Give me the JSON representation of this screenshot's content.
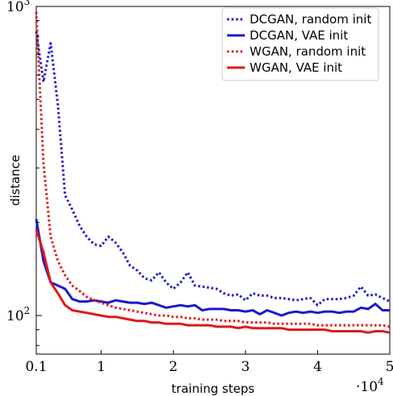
{
  "chart_data": {
    "type": "line",
    "title": "",
    "xlabel": "training steps",
    "ylabel": "distance",
    "x_scale_note": "·10^4",
    "x_multiplier_base": "·10",
    "x_multiplier_exp": "4",
    "xlim": [
      0.1,
      5
    ],
    "ylim": [
      75,
      1000
    ],
    "y_scale": "log",
    "grid": false,
    "legend_position": "top-right",
    "x_ticks": [
      {
        "value": 0.1,
        "label": "0.1"
      },
      {
        "value": 1,
        "label": "1"
      },
      {
        "value": 2,
        "label": "2"
      },
      {
        "value": 3,
        "label": "3"
      },
      {
        "value": 4,
        "label": "4"
      },
      {
        "value": 5,
        "label": "5"
      }
    ],
    "y_ticks": [
      {
        "value": 100,
        "base": "10",
        "exp": "2"
      },
      {
        "value": 1000,
        "base": "10",
        "exp": "3"
      }
    ],
    "series": [
      {
        "name": "DCGAN, random init",
        "color": "#1a1acc",
        "style": "dotted",
        "x": [
          0.1,
          0.2,
          0.3,
          0.4,
          0.5,
          0.6,
          0.7,
          0.8,
          0.9,
          1.0,
          1.1,
          1.2,
          1.3,
          1.4,
          1.5,
          1.6,
          1.7,
          1.8,
          1.9,
          2.0,
          2.1,
          2.2,
          2.3,
          2.4,
          2.5,
          2.6,
          2.7,
          2.8,
          2.9,
          3.0,
          3.1,
          3.2,
          3.3,
          3.4,
          3.5,
          3.6,
          3.7,
          3.8,
          3.9,
          4.0,
          4.1,
          4.2,
          4.3,
          4.4,
          4.5,
          4.6,
          4.7,
          4.8,
          4.9,
          5.0
        ],
        "y": [
          830,
          570,
          760,
          480,
          245,
          220,
          195,
          180,
          170,
          168,
          180,
          172,
          160,
          145,
          140,
          132,
          130,
          138,
          128,
          122,
          128,
          138,
          125,
          124,
          123,
          122,
          118,
          116,
          117,
          112,
          118,
          116,
          116,
          114,
          114,
          113,
          112,
          113,
          114,
          108,
          113,
          113,
          113,
          114,
          116,
          124,
          116,
          117,
          114,
          111
        ]
      },
      {
        "name": "DCGAN, VAE init",
        "color": "#1a1acc",
        "style": "solid",
        "x": [
          0.1,
          0.2,
          0.3,
          0.4,
          0.5,
          0.6,
          0.7,
          0.8,
          0.9,
          1.0,
          1.1,
          1.2,
          1.3,
          1.4,
          1.5,
          1.6,
          1.7,
          1.8,
          1.9,
          2.0,
          2.1,
          2.2,
          2.3,
          2.4,
          2.5,
          2.6,
          2.7,
          2.8,
          2.9,
          3.0,
          3.1,
          3.2,
          3.3,
          3.4,
          3.5,
          3.6,
          3.7,
          3.8,
          3.9,
          4.0,
          4.1,
          4.2,
          4.3,
          4.4,
          4.5,
          4.6,
          4.7,
          4.8,
          4.9,
          5.0
        ],
        "y": [
          205,
          150,
          128,
          125,
          122,
          113,
          111,
          111,
          112,
          111,
          110,
          112,
          111,
          110,
          110,
          109,
          110,
          108,
          106,
          107,
          108,
          107,
          108,
          104,
          105,
          105,
          105,
          104,
          104,
          103,
          104,
          101,
          104,
          102,
          100,
          102,
          103,
          102,
          103,
          102,
          103,
          103,
          102,
          103,
          103,
          106,
          105,
          109,
          104,
          104
        ]
      },
      {
        "name": "WGAN, random init",
        "color": "#e01818",
        "style": "dotted",
        "x": [
          0.1,
          0.2,
          0.3,
          0.4,
          0.5,
          0.6,
          0.7,
          0.8,
          0.9,
          1.0,
          1.1,
          1.2,
          1.3,
          1.4,
          1.5,
          1.6,
          1.7,
          1.8,
          1.9,
          2.0,
          2.1,
          2.2,
          2.3,
          2.4,
          2.5,
          2.6,
          2.7,
          2.8,
          2.9,
          3.0,
          3.1,
          3.2,
          3.3,
          3.4,
          3.5,
          3.6,
          3.7,
          3.8,
          3.9,
          4.0,
          4.1,
          4.2,
          4.3,
          4.4,
          4.5,
          4.6,
          4.7,
          4.8,
          4.9,
          5.0
        ],
        "y": [
          960,
          310,
          180,
          150,
          135,
          125,
          120,
          115,
          112,
          110,
          108,
          106,
          105,
          104,
          103,
          102,
          101,
          100,
          100,
          99,
          99,
          98,
          98,
          97,
          97,
          97,
          96,
          96,
          96,
          95,
          95,
          95,
          95,
          94,
          94,
          94,
          94,
          94,
          94,
          93,
          93,
          93,
          93,
          93,
          93,
          93,
          93,
          93,
          93,
          92
        ]
      },
      {
        "name": "WGAN, VAE init",
        "color": "#e01818",
        "style": "solid",
        "x": [
          0.1,
          0.2,
          0.3,
          0.4,
          0.5,
          0.6,
          0.7,
          0.8,
          0.9,
          1.0,
          1.1,
          1.2,
          1.3,
          1.4,
          1.5,
          1.6,
          1.7,
          1.8,
          1.9,
          2.0,
          2.1,
          2.2,
          2.3,
          2.4,
          2.5,
          2.6,
          2.7,
          2.8,
          2.9,
          3.0,
          3.1,
          3.2,
          3.3,
          3.4,
          3.5,
          3.6,
          3.7,
          3.8,
          3.9,
          4.0,
          4.1,
          4.2,
          4.3,
          4.4,
          4.5,
          4.6,
          4.7,
          4.8,
          4.9,
          5.0
        ],
        "y": [
          190,
          160,
          128,
          118,
          108,
          104,
          103,
          102,
          101,
          100,
          99,
          99,
          98,
          97,
          96,
          96,
          95,
          95,
          94,
          94,
          94,
          93,
          93,
          93,
          93,
          92,
          92,
          92,
          91,
          92,
          91,
          91,
          91,
          91,
          91,
          90,
          90,
          90,
          90,
          90,
          90,
          89,
          89,
          89,
          89,
          89,
          88,
          89,
          89,
          88
        ]
      }
    ]
  }
}
